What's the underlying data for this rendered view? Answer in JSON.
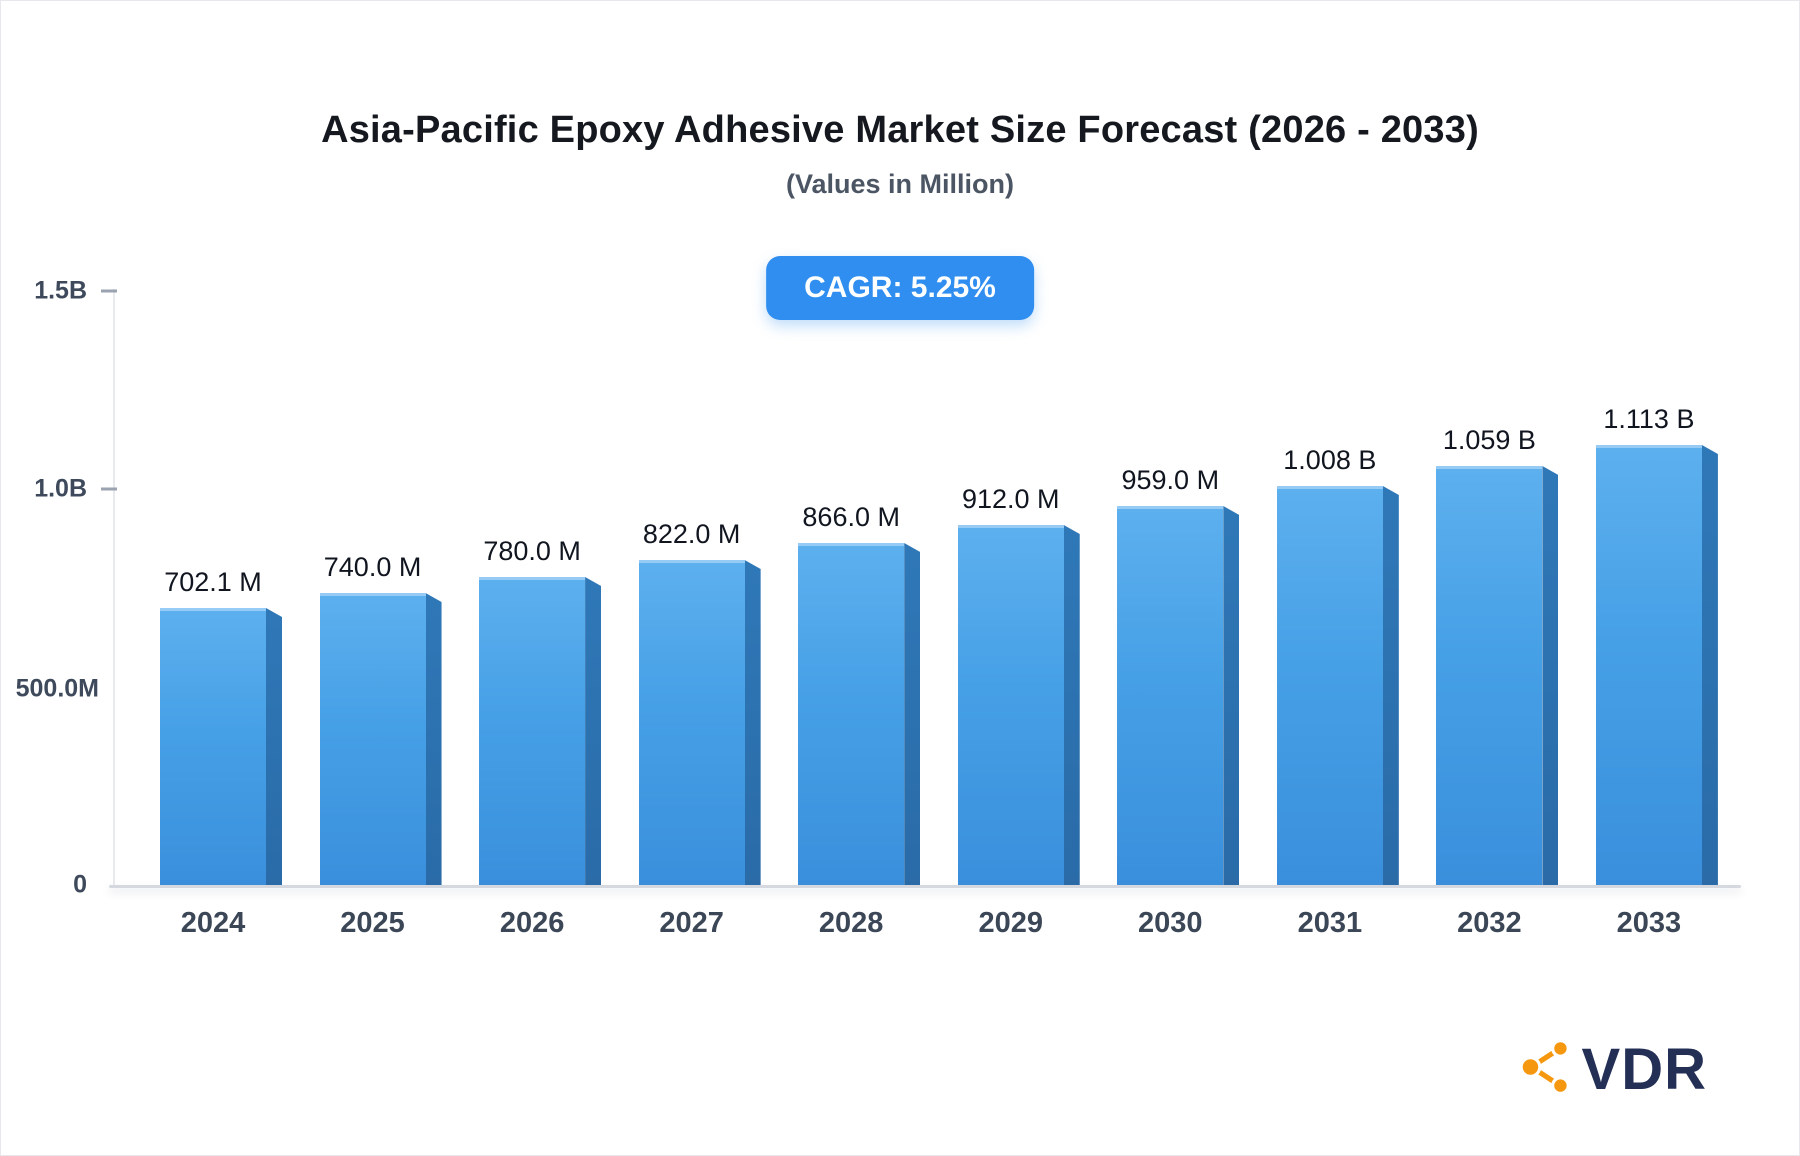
{
  "header": {
    "title": "Asia-Pacific Epoxy Adhesive Market Size Forecast (2026 - 2033)",
    "subtitle": "(Values in Million)",
    "badge_label": "CAGR: 5.25%"
  },
  "chart_data": {
    "type": "bar",
    "title": "Asia-Pacific Epoxy Adhesive Market Size Forecast (2026 - 2033)",
    "subtitle": "(Values in Million)",
    "categories": [
      "2024",
      "2025",
      "2026",
      "2027",
      "2028",
      "2029",
      "2030",
      "2031",
      "2032",
      "2033"
    ],
    "values": [
      702.1,
      740.0,
      780.0,
      822.0,
      866.0,
      912.0,
      959.0,
      1008.0,
      1059.0,
      1113.0
    ],
    "value_labels": [
      "702.1 M",
      "740.0 M",
      "780.0 M",
      "822.0 M",
      "866.0 M",
      "912.0 M",
      "959.0 M",
      "1.008 B",
      "1.059 B",
      "1.113 B"
    ],
    "unit": "Million",
    "xlabel": "",
    "ylabel": "",
    "ylim": [
      0,
      1500
    ],
    "yticks": [
      {
        "label": "1.5B",
        "value": 1500
      },
      {
        "label": "1.0B",
        "value": 1000
      },
      {
        "label": "500.0M",
        "value": 500
      },
      {
        "label": "0",
        "value": 0
      }
    ],
    "grid": false,
    "legend": "none",
    "annotations": [
      "CAGR: 5.25%"
    ],
    "colors": {
      "bar_face_top": "#5db0ee",
      "bar_face_bottom": "#3a8fdc",
      "bar_side": "#2d72ae",
      "badge_background": "#2f8ef0",
      "badge_text": "#ffffff",
      "axis_line": "#d5d9df",
      "label_text": "#10151f"
    }
  },
  "logo": {
    "text": "VDR",
    "icon": "share-network-icon",
    "icon_color": "#f5980f",
    "text_color": "#232f55"
  }
}
